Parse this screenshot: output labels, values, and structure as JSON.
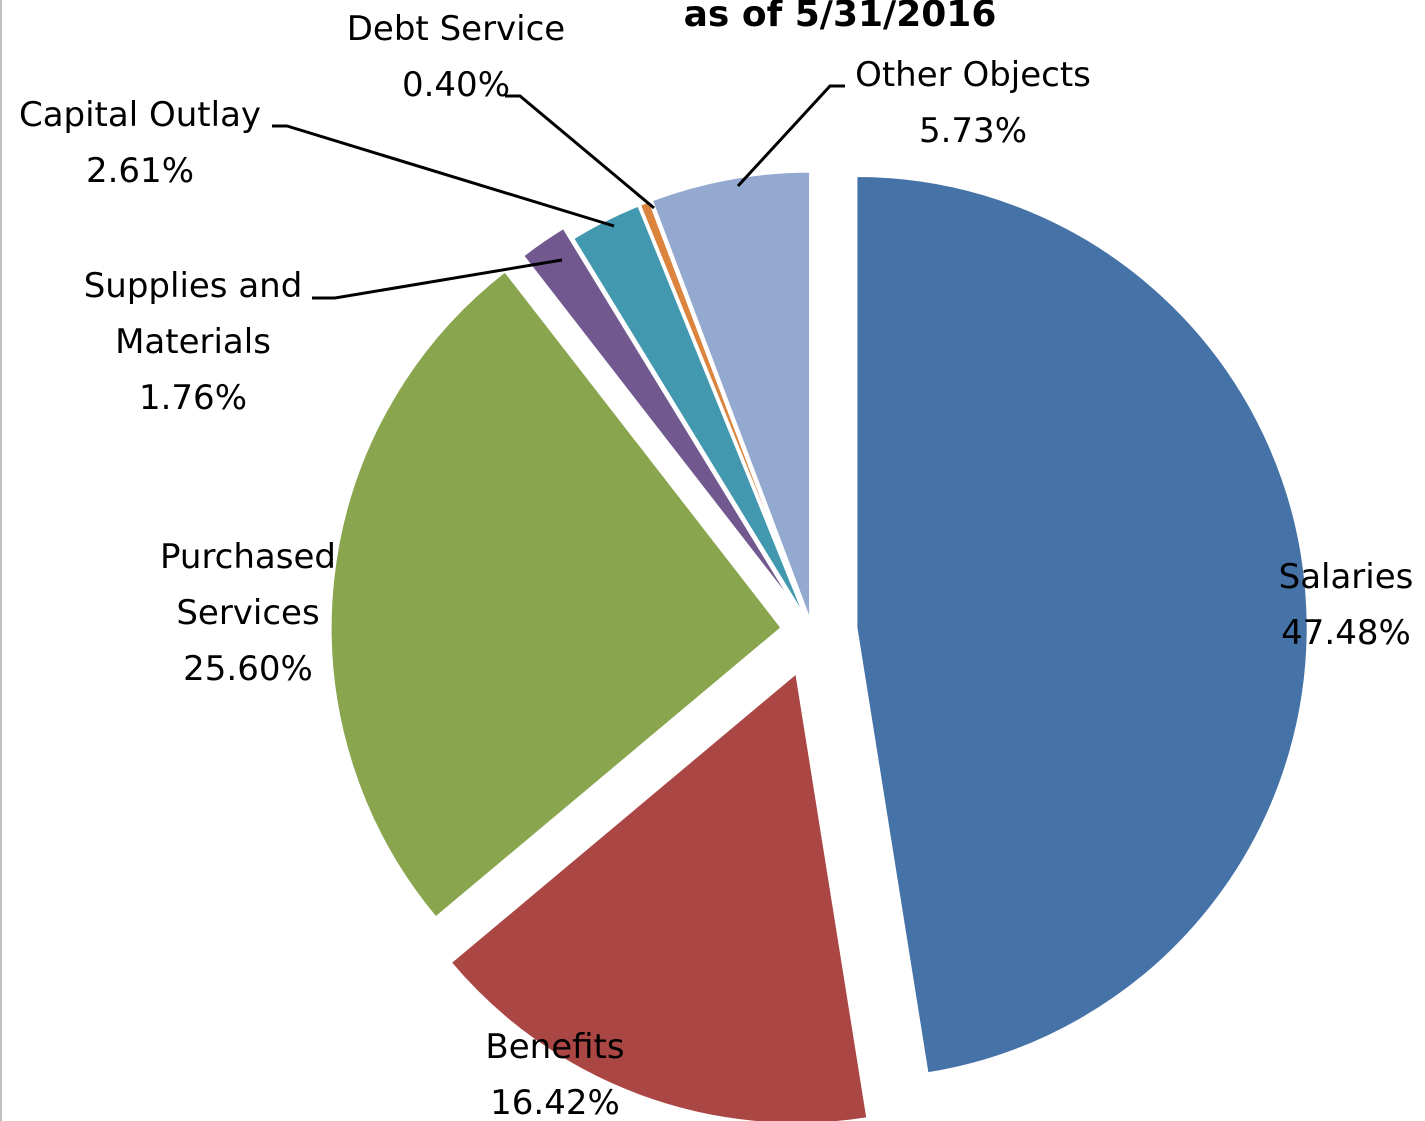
{
  "chart_data": {
    "type": "pie",
    "title": "as of 5/31/2016",
    "slices": [
      {
        "label_lines": [
          "Salaries"
        ],
        "value": 47.48,
        "value_text": "47.48%",
        "color": "#4572a7"
      },
      {
        "label_lines": [
          "Benefits"
        ],
        "value": 16.42,
        "value_text": "16.42%",
        "color": "#aa4643"
      },
      {
        "label_lines": [
          "Purchased",
          "Services"
        ],
        "value": 25.6,
        "value_text": "25.60%",
        "color": "#89a54e"
      },
      {
        "label_lines": [
          "Supplies and",
          "Materials"
        ],
        "value": 1.76,
        "value_text": "1.76%",
        "color": "#71588f"
      },
      {
        "label_lines": [
          "Capital Outlay"
        ],
        "value": 2.61,
        "value_text": "2.61%",
        "color": "#4198af"
      },
      {
        "label_lines": [
          "Debt Service"
        ],
        "value": 0.4,
        "value_text": "0.40%",
        "color": "#db843d"
      },
      {
        "label_lines": [
          "Other Objects"
        ],
        "value": 5.73,
        "value_text": "5.73%",
        "color": "#93a9cf"
      }
    ],
    "exploded": [
      "Salaries",
      "Benefits",
      "Purchased Services",
      "Supplies and Materials"
    ],
    "legend": "none"
  }
}
